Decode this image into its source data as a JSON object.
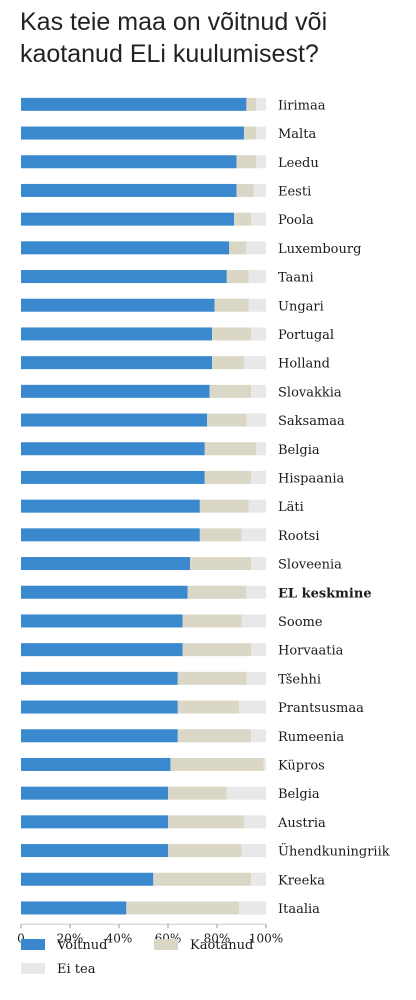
{
  "title": "Kas teie maa on võitnud või kaotanud ELi kuulumisest?",
  "colors": {
    "won": "#3a88cd",
    "lost": "#dbd7c6",
    "unknown": "#e8e8e8",
    "axis": "#cccccc"
  },
  "chart_data": {
    "type": "bar",
    "orientation": "horizontal",
    "stacked": true,
    "title": "Kas teie maa on võitnud või kaotanud ELi kuulumisest?",
    "categories": [
      "Iirimaa",
      "Malta",
      "Leedu",
      "Eesti",
      "Poola",
      "Luxembourg",
      "Taani",
      "Ungari",
      "Portugal",
      "Holland",
      "Slovakkia",
      "Saksamaa",
      "Belgia",
      "Hispaania",
      "Läti",
      "Rootsi",
      "Sloveenia",
      "EL keskmine",
      "Soome",
      "Horvaatia",
      "Tšehhi",
      "Prantsusmaa",
      "Rumeenia",
      "Küpros",
      "Belgia",
      "Austria",
      "Ühendkuningriik",
      "Kreeka",
      "Itaalia"
    ],
    "highlight": "EL keskmine",
    "series": [
      {
        "name": "Võitnud",
        "color": "#3a88cd",
        "values": [
          92,
          91,
          88,
          88,
          87,
          85,
          84,
          79,
          78,
          78,
          77,
          76,
          75,
          75,
          73,
          73,
          69,
          68,
          66,
          66,
          64,
          64,
          64,
          61,
          60,
          60,
          60,
          54,
          43
        ]
      },
      {
        "name": "Kaotanud",
        "color": "#dbd7c6",
        "values": [
          4,
          5,
          8,
          7,
          7,
          7,
          9,
          14,
          16,
          13,
          17,
          16,
          21,
          19,
          20,
          17,
          25,
          24,
          24,
          28,
          28,
          25,
          30,
          38,
          24,
          31,
          30,
          40,
          46
        ]
      },
      {
        "name": "Ei tea",
        "color": "#e8e8e8",
        "values": [
          4,
          4,
          4,
          5,
          6,
          8,
          7,
          7,
          6,
          9,
          6,
          8,
          4,
          6,
          7,
          10,
          6,
          8,
          10,
          6,
          8,
          11,
          6,
          1,
          16,
          9,
          10,
          6,
          11
        ]
      }
    ],
    "xlim": [
      0,
      100
    ],
    "xticks": [
      "0",
      "20%",
      "40%",
      "60%",
      "80%",
      "100%"
    ],
    "grid": false,
    "legend_position": "bottom-left"
  }
}
